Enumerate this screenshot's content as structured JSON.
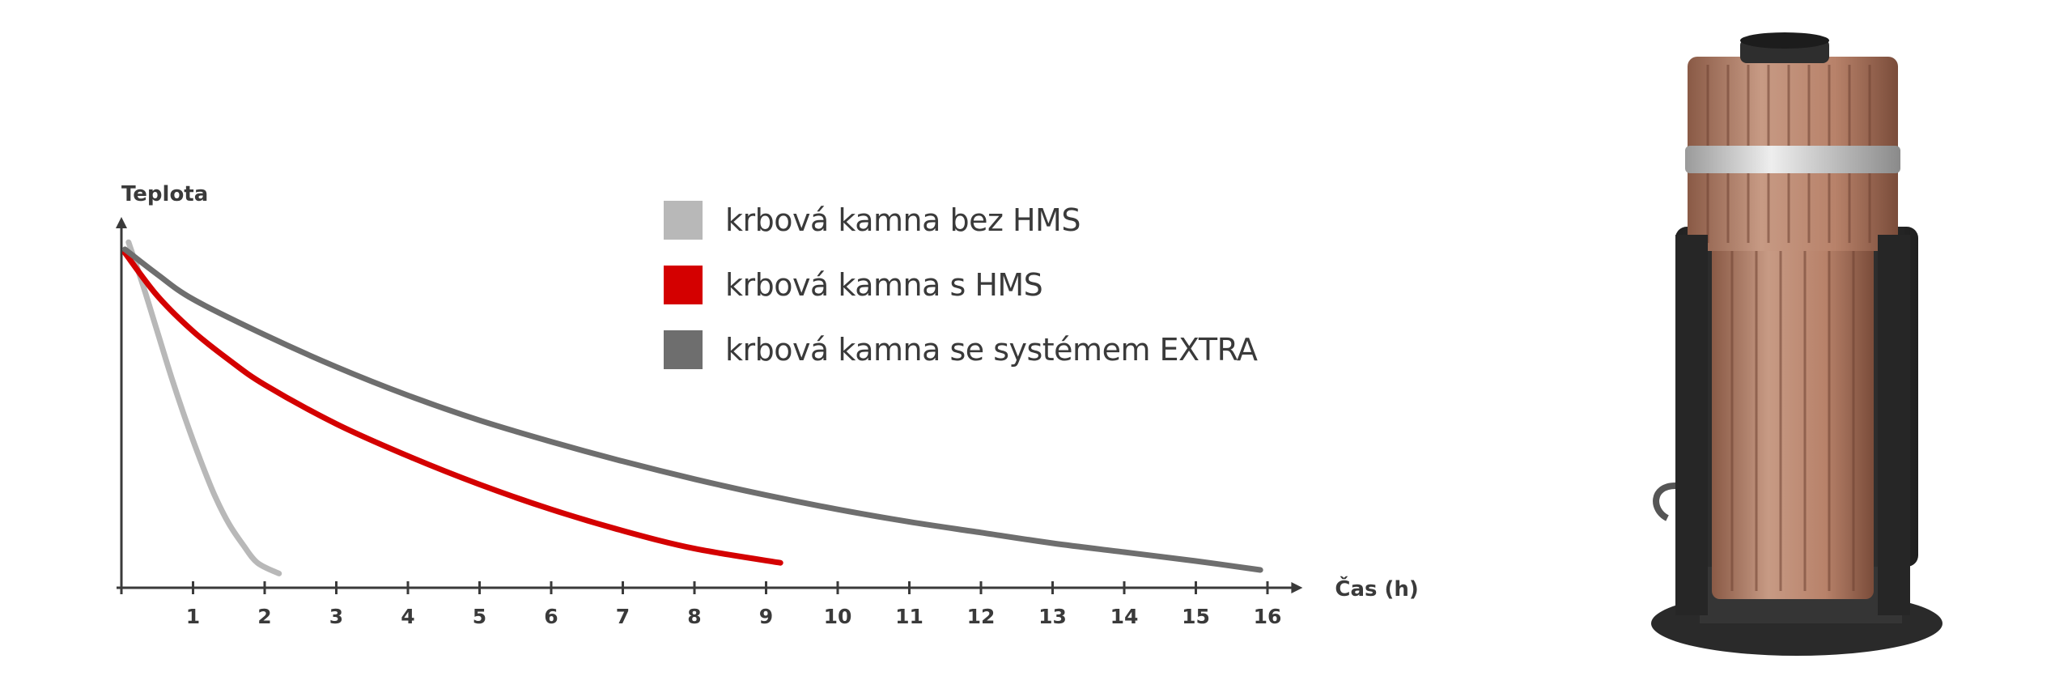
{
  "chart_data": {
    "type": "line",
    "title": "",
    "ylabel": "Teplota",
    "xlabel": "Čas (h)",
    "xlim": [
      0,
      16.4
    ],
    "ylim": [
      0,
      100
    ],
    "x_ticks": [
      1,
      2,
      3,
      4,
      5,
      6,
      7,
      8,
      9,
      10,
      11,
      12,
      13,
      14,
      15,
      16
    ],
    "grid": false,
    "legend_position": "top-center",
    "series": [
      {
        "name": "krbová kamna bez HMS",
        "color": "#b8b8b8",
        "x": [
          0.1,
          0.3,
          0.5,
          0.7,
          0.9,
          1.1,
          1.3,
          1.5,
          1.7,
          1.9,
          2.2
        ],
        "y": [
          97,
          85,
          72,
          59,
          47,
          36,
          26,
          18,
          12,
          7,
          4
        ]
      },
      {
        "name": "krbová kamna s HMS",
        "color": "#d40000",
        "x": [
          0.05,
          0.5,
          1,
          1.5,
          2,
          3,
          4,
          5,
          6,
          7,
          8,
          9.2
        ],
        "y": [
          94,
          82,
          72,
          64,
          57,
          46,
          37,
          29,
          22,
          16,
          11,
          7
        ]
      },
      {
        "name": "krbová kamna se systémem EXTRA",
        "color": "#6e6e6e",
        "x": [
          0.05,
          0.5,
          1,
          2,
          3,
          4,
          5,
          6,
          7,
          8,
          9,
          10,
          11,
          12,
          13,
          14,
          15,
          15.9
        ],
        "y": [
          95,
          88,
          81,
          71,
          62,
          54,
          47,
          41,
          35.5,
          30.5,
          26,
          22,
          18.5,
          15.5,
          12.5,
          10,
          7.5,
          5
        ]
      }
    ]
  },
  "legend": {
    "items": [
      {
        "label": "krbová kamna bez HMS",
        "color": "#b8b8b8"
      },
      {
        "label": "krbová kamna s HMS",
        "color": "#d40000"
      },
      {
        "label": "krbová kamna se systémem EXTRA",
        "color": "#6e6e6e"
      }
    ]
  },
  "product": {
    "image_icon": "fireplace-insert-with-heat-storage-icon",
    "ceramic_color": "#b8826a",
    "steel_color": "#3a3a3a"
  }
}
